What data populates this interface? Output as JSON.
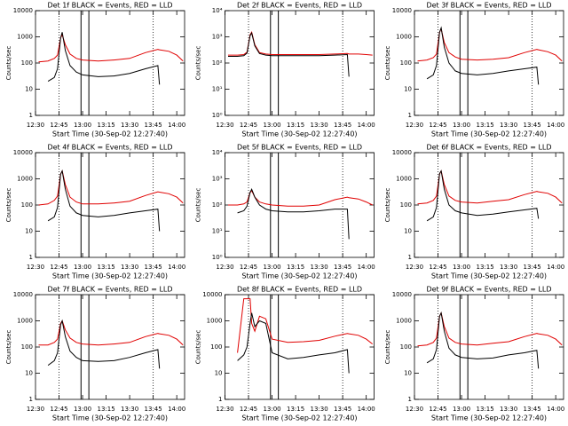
{
  "chart_data": [
    {
      "type": "line",
      "title": "Det 1f BLACK = Events, RED = LLD",
      "xlabel": "Start Time (30-Sep-02 12:27:40)",
      "ylabel": "Counts/sec",
      "log_y": true,
      "x": [
        "12:32",
        "12:38",
        "12:42",
        "12:44",
        "12:46",
        "12:47",
        "12:49",
        "12:52",
        "12:56",
        "13:00",
        "13:10",
        "13:20",
        "13:30",
        "13:40",
        "13:48",
        "13:49",
        "13:55",
        "14:00",
        "14:04"
      ],
      "xlim": [
        "12:30",
        "14:05"
      ],
      "xticks": [
        "12:30",
        "12:45",
        "13:00",
        "13:15",
        "13:30",
        "13:45",
        "14:00"
      ],
      "ylim": [
        1,
        10000
      ],
      "yticks": [
        1,
        10,
        100,
        1000,
        10000
      ],
      "dotted_lines": [
        "12:45",
        "13:45"
      ],
      "solid_lines": [
        "12:59",
        "13:04"
      ],
      "series": [
        {
          "color": "#e00000",
          "values": [
            110,
            120,
            150,
            200,
            900,
            1200,
            500,
            220,
            150,
            130,
            120,
            130,
            150,
            250,
            330,
            320,
            280,
            200,
            120
          ]
        },
        {
          "color": "#000000",
          "values": [
            null,
            20,
            28,
            60,
            900,
            1500,
            300,
            80,
            45,
            35,
            30,
            32,
            40,
            60,
            80,
            15,
            null,
            null,
            null
          ]
        }
      ]
    },
    {
      "type": "line",
      "title": "Det 2f BLACK = Events, RED = LLD",
      "xlabel": "Start Time (30-Sep-02 12:27:40)",
      "ylabel": "Counts/sec",
      "log_y": true,
      "x": [
        "12:32",
        "12:38",
        "12:42",
        "12:44",
        "12:46",
        "12:47",
        "12:49",
        "12:52",
        "12:56",
        "13:00",
        "13:10",
        "13:20",
        "13:30",
        "13:40",
        "13:48",
        "13:49",
        "13:55",
        "14:00",
        "14:04"
      ],
      "xlim": [
        "12:30",
        "14:05"
      ],
      "xticks": [
        "12:30",
        "12:45",
        "13:00",
        "13:15",
        "13:30",
        "13:45",
        "14:00"
      ],
      "ylim": [
        1,
        10000
      ],
      "yticks": [
        {
          "value": 1,
          "label": "10⁰"
        },
        {
          "value": 10,
          "label": "10¹"
        },
        {
          "value": 100,
          "label": "10²"
        },
        {
          "value": 1000,
          "label": "10³"
        },
        {
          "value": 10000,
          "label": "10⁴"
        }
      ],
      "dotted_lines": [
        "12:45",
        "13:45"
      ],
      "solid_lines": [
        "12:59",
        "13:04"
      ],
      "series": [
        {
          "color": "#e00000",
          "values": [
            200,
            200,
            210,
            260,
            1200,
            1500,
            500,
            250,
            220,
            210,
            210,
            210,
            210,
            220,
            230,
            220,
            220,
            210,
            200
          ]
        },
        {
          "color": "#000000",
          "values": [
            180,
            180,
            190,
            240,
            1100,
            1400,
            450,
            230,
            200,
            190,
            190,
            190,
            190,
            200,
            210,
            30,
            null,
            null,
            null
          ]
        }
      ]
    },
    {
      "type": "line",
      "title": "Det 3f BLACK = Events, RED = LLD",
      "xlabel": "Start Time (30-Sep-02 12:27:40)",
      "ylabel": "Counts/sec",
      "log_y": true,
      "x": [
        "12:32",
        "12:38",
        "12:42",
        "12:44",
        "12:46",
        "12:47",
        "12:49",
        "12:52",
        "12:56",
        "13:00",
        "13:10",
        "13:20",
        "13:30",
        "13:40",
        "13:48",
        "13:49",
        "13:55",
        "14:00",
        "14:04"
      ],
      "xlim": [
        "12:30",
        "14:05"
      ],
      "xticks": [
        "12:30",
        "12:45",
        "13:00",
        "13:15",
        "13:30",
        "13:45",
        "14:00"
      ],
      "ylim": [
        1,
        10000
      ],
      "yticks": [
        1,
        10,
        100,
        1000,
        10000
      ],
      "dotted_lines": [
        "12:45",
        "13:45"
      ],
      "solid_lines": [
        "12:59",
        "13:04"
      ],
      "series": [
        {
          "color": "#e00000",
          "values": [
            120,
            130,
            160,
            220,
            1500,
            2000,
            600,
            250,
            170,
            140,
            130,
            140,
            160,
            250,
            330,
            320,
            270,
            200,
            120
          ]
        },
        {
          "color": "#000000",
          "values": [
            null,
            25,
            35,
            80,
            1500,
            2200,
            400,
            100,
            50,
            40,
            35,
            40,
            50,
            60,
            70,
            15,
            null,
            null,
            null
          ]
        }
      ]
    },
    {
      "type": "line",
      "title": "Det 4f BLACK = Events, RED = LLD",
      "xlabel": "Start Time (30-Sep-02 12:27:40)",
      "ylabel": "Counts/sec",
      "log_y": true,
      "x": [
        "12:32",
        "12:38",
        "12:42",
        "12:44",
        "12:46",
        "12:47",
        "12:49",
        "12:52",
        "12:56",
        "13:00",
        "13:10",
        "13:20",
        "13:30",
        "13:40",
        "13:48",
        "13:49",
        "13:55",
        "14:00",
        "14:04"
      ],
      "xlim": [
        "12:30",
        "14:05"
      ],
      "xticks": [
        "12:30",
        "12:45",
        "13:00",
        "13:15",
        "13:30",
        "13:45",
        "14:00"
      ],
      "ylim": [
        1,
        10000
      ],
      "yticks": [
        1,
        10,
        100,
        1000,
        10000
      ],
      "dotted_lines": [
        "12:45",
        "13:45"
      ],
      "solid_lines": [
        "12:59",
        "13:04"
      ],
      "series": [
        {
          "color": "#e00000",
          "values": [
            100,
            110,
            150,
            220,
            1500,
            2000,
            600,
            200,
            130,
            110,
            110,
            120,
            140,
            230,
            320,
            310,
            270,
            200,
            120
          ]
        },
        {
          "color": "#000000",
          "values": [
            null,
            25,
            35,
            80,
            1500,
            2000,
            400,
            90,
            50,
            40,
            35,
            40,
            50,
            60,
            70,
            10,
            null,
            null,
            null
          ]
        }
      ]
    },
    {
      "type": "line",
      "title": "Det 5f BLACK = Events, RED = LLD",
      "xlabel": "Start Time (30-Sep-02 12:27:40)",
      "ylabel": "Counts/sec",
      "log_y": true,
      "x": [
        "12:32",
        "12:38",
        "12:42",
        "12:44",
        "12:46",
        "12:47",
        "12:49",
        "12:52",
        "12:56",
        "13:00",
        "13:10",
        "13:20",
        "13:30",
        "13:40",
        "13:48",
        "13:49",
        "13:55",
        "14:00",
        "14:04"
      ],
      "xlim": [
        "12:30",
        "14:05"
      ],
      "xticks": [
        "12:30",
        "12:45",
        "13:00",
        "13:15",
        "13:30",
        "13:45",
        "14:00"
      ],
      "ylim": [
        1,
        10000
      ],
      "yticks": [
        {
          "value": 1,
          "label": "10⁰"
        },
        {
          "value": 10,
          "label": "10¹"
        },
        {
          "value": 100,
          "label": "10²"
        },
        {
          "value": 1000,
          "label": "10³"
        },
        {
          "value": 10000,
          "label": "10⁴"
        }
      ],
      "dotted_lines": [
        "12:45",
        "13:45"
      ],
      "solid_lines": [
        "12:59",
        "13:04"
      ],
      "series": [
        {
          "color": "#e00000",
          "values": [
            100,
            100,
            110,
            130,
            300,
            350,
            200,
            130,
            110,
            100,
            90,
            90,
            100,
            160,
            200,
            190,
            170,
            130,
            100
          ]
        },
        {
          "color": "#000000",
          "values": [
            null,
            50,
            60,
            90,
            300,
            400,
            200,
            100,
            70,
            60,
            55,
            55,
            60,
            70,
            70,
            5,
            null,
            null,
            null
          ]
        }
      ]
    },
    {
      "type": "line",
      "title": "Det 6f BLACK = Events, RED = LLD",
      "xlabel": "Start Time (30-Sep-02 12:27:40)",
      "ylabel": "Counts/sec",
      "log_y": true,
      "x": [
        "12:32",
        "12:38",
        "12:42",
        "12:44",
        "12:46",
        "12:47",
        "12:49",
        "12:52",
        "12:56",
        "13:00",
        "13:10",
        "13:20",
        "13:30",
        "13:40",
        "13:48",
        "13:49",
        "13:55",
        "14:00",
        "14:04"
      ],
      "xlim": [
        "12:30",
        "14:05"
      ],
      "xticks": [
        "12:30",
        "12:45",
        "13:00",
        "13:15",
        "13:30",
        "13:45",
        "14:00"
      ],
      "ylim": [
        1,
        10000
      ],
      "yticks": [
        1,
        10,
        100,
        1000,
        10000
      ],
      "dotted_lines": [
        "12:45",
        "13:45"
      ],
      "solid_lines": [
        "12:59",
        "13:04"
      ],
      "series": [
        {
          "color": "#e00000",
          "values": [
            110,
            120,
            150,
            220,
            1500,
            2000,
            600,
            220,
            150,
            130,
            120,
            140,
            160,
            250,
            330,
            320,
            280,
            200,
            120
          ]
        },
        {
          "color": "#000000",
          "values": [
            null,
            25,
            35,
            80,
            1600,
            2000,
            400,
            100,
            60,
            50,
            40,
            45,
            55,
            65,
            75,
            30,
            null,
            null,
            null
          ]
        }
      ]
    },
    {
      "type": "line",
      "title": "Det 7f BLACK = Events, RED = LLD",
      "xlabel": "Start Time (30-Sep-02 12:27:40)",
      "ylabel": "Counts/sec",
      "log_y": true,
      "x": [
        "12:32",
        "12:38",
        "12:42",
        "12:44",
        "12:46",
        "12:47",
        "12:49",
        "12:52",
        "12:56",
        "13:00",
        "13:10",
        "13:20",
        "13:30",
        "13:40",
        "13:48",
        "13:49",
        "13:55",
        "14:00",
        "14:04"
      ],
      "xlim": [
        "12:30",
        "14:05"
      ],
      "xticks": [
        "12:30",
        "12:45",
        "13:00",
        "13:15",
        "13:30",
        "13:45",
        "14:00"
      ],
      "ylim": [
        1,
        10000
      ],
      "yticks": [
        1,
        10,
        100,
        1000,
        10000
      ],
      "dotted_lines": [
        "12:45",
        "13:45"
      ],
      "solid_lines": [
        "12:59",
        "13:04"
      ],
      "series": [
        {
          "color": "#e00000",
          "values": [
            120,
            120,
            150,
            200,
            800,
            1000,
            450,
            220,
            150,
            130,
            120,
            130,
            150,
            250,
            330,
            320,
            280,
            200,
            120
          ]
        },
        {
          "color": "#000000",
          "values": [
            null,
            20,
            30,
            60,
            700,
            1000,
            250,
            70,
            40,
            30,
            28,
            30,
            40,
            60,
            80,
            15,
            null,
            null,
            null
          ]
        }
      ]
    },
    {
      "type": "line",
      "title": "Det 8f BLACK = Events, RED = LLD",
      "xlabel": "Start Time (30-Sep-02 12:27:40)",
      "ylabel": "Counts/sec",
      "log_y": true,
      "x": [
        "12:32",
        "12:38",
        "12:42",
        "12:44",
        "12:46",
        "12:47",
        "12:49",
        "12:52",
        "12:56",
        "13:00",
        "13:10",
        "13:20",
        "13:30",
        "13:40",
        "13:48",
        "13:49",
        "13:55",
        "14:00",
        "14:04"
      ],
      "xlim": [
        "12:30",
        "14:05"
      ],
      "xticks": [
        "12:30",
        "12:45",
        "13:00",
        "13:15",
        "13:30",
        "13:45",
        "14:00"
      ],
      "ylim": [
        1,
        10000
      ],
      "yticks": [
        1,
        10,
        100,
        1000,
        10000
      ],
      "dotted_lines": [
        "12:45",
        "13:45"
      ],
      "solid_lines": [
        "12:59",
        "13:04"
      ],
      "series": [
        {
          "color": "#e00000",
          "values": [
            null,
            60,
            7000,
            7000,
            7000,
            800,
            400,
            1500,
            1200,
            200,
            150,
            160,
            180,
            260,
            330,
            320,
            280,
            200,
            130
          ]
        },
        {
          "color": "#000000",
          "values": [
            null,
            30,
            50,
            100,
            800,
            2000,
            600,
            1000,
            800,
            60,
            35,
            40,
            50,
            60,
            80,
            10,
            null,
            null,
            null
          ]
        }
      ]
    },
    {
      "type": "line",
      "title": "Det 9f BLACK = Events, RED = LLD",
      "xlabel": "Start Time (30-Sep-02 12:27:40)",
      "ylabel": "Counts/sec",
      "log_y": true,
      "x": [
        "12:32",
        "12:38",
        "12:42",
        "12:44",
        "12:46",
        "12:47",
        "12:49",
        "12:52",
        "12:56",
        "13:00",
        "13:10",
        "13:20",
        "13:30",
        "13:40",
        "13:48",
        "13:49",
        "13:55",
        "14:00",
        "14:04"
      ],
      "xlim": [
        "12:30",
        "14:05"
      ],
      "xticks": [
        "12:30",
        "12:45",
        "13:00",
        "13:15",
        "13:30",
        "13:45",
        "14:00"
      ],
      "ylim": [
        1,
        10000
      ],
      "yticks": [
        1,
        10,
        100,
        1000,
        10000
      ],
      "dotted_lines": [
        "12:45",
        "13:45"
      ],
      "solid_lines": [
        "12:59",
        "13:04"
      ],
      "series": [
        {
          "color": "#e00000",
          "values": [
            110,
            120,
            150,
            220,
            1500,
            2000,
            600,
            220,
            150,
            130,
            120,
            140,
            160,
            250,
            330,
            320,
            280,
            200,
            120
          ]
        },
        {
          "color": "#000000",
          "values": [
            null,
            25,
            35,
            80,
            1500,
            2000,
            400,
            90,
            50,
            40,
            35,
            38,
            50,
            60,
            75,
            15,
            null,
            null,
            null
          ]
        }
      ]
    }
  ]
}
